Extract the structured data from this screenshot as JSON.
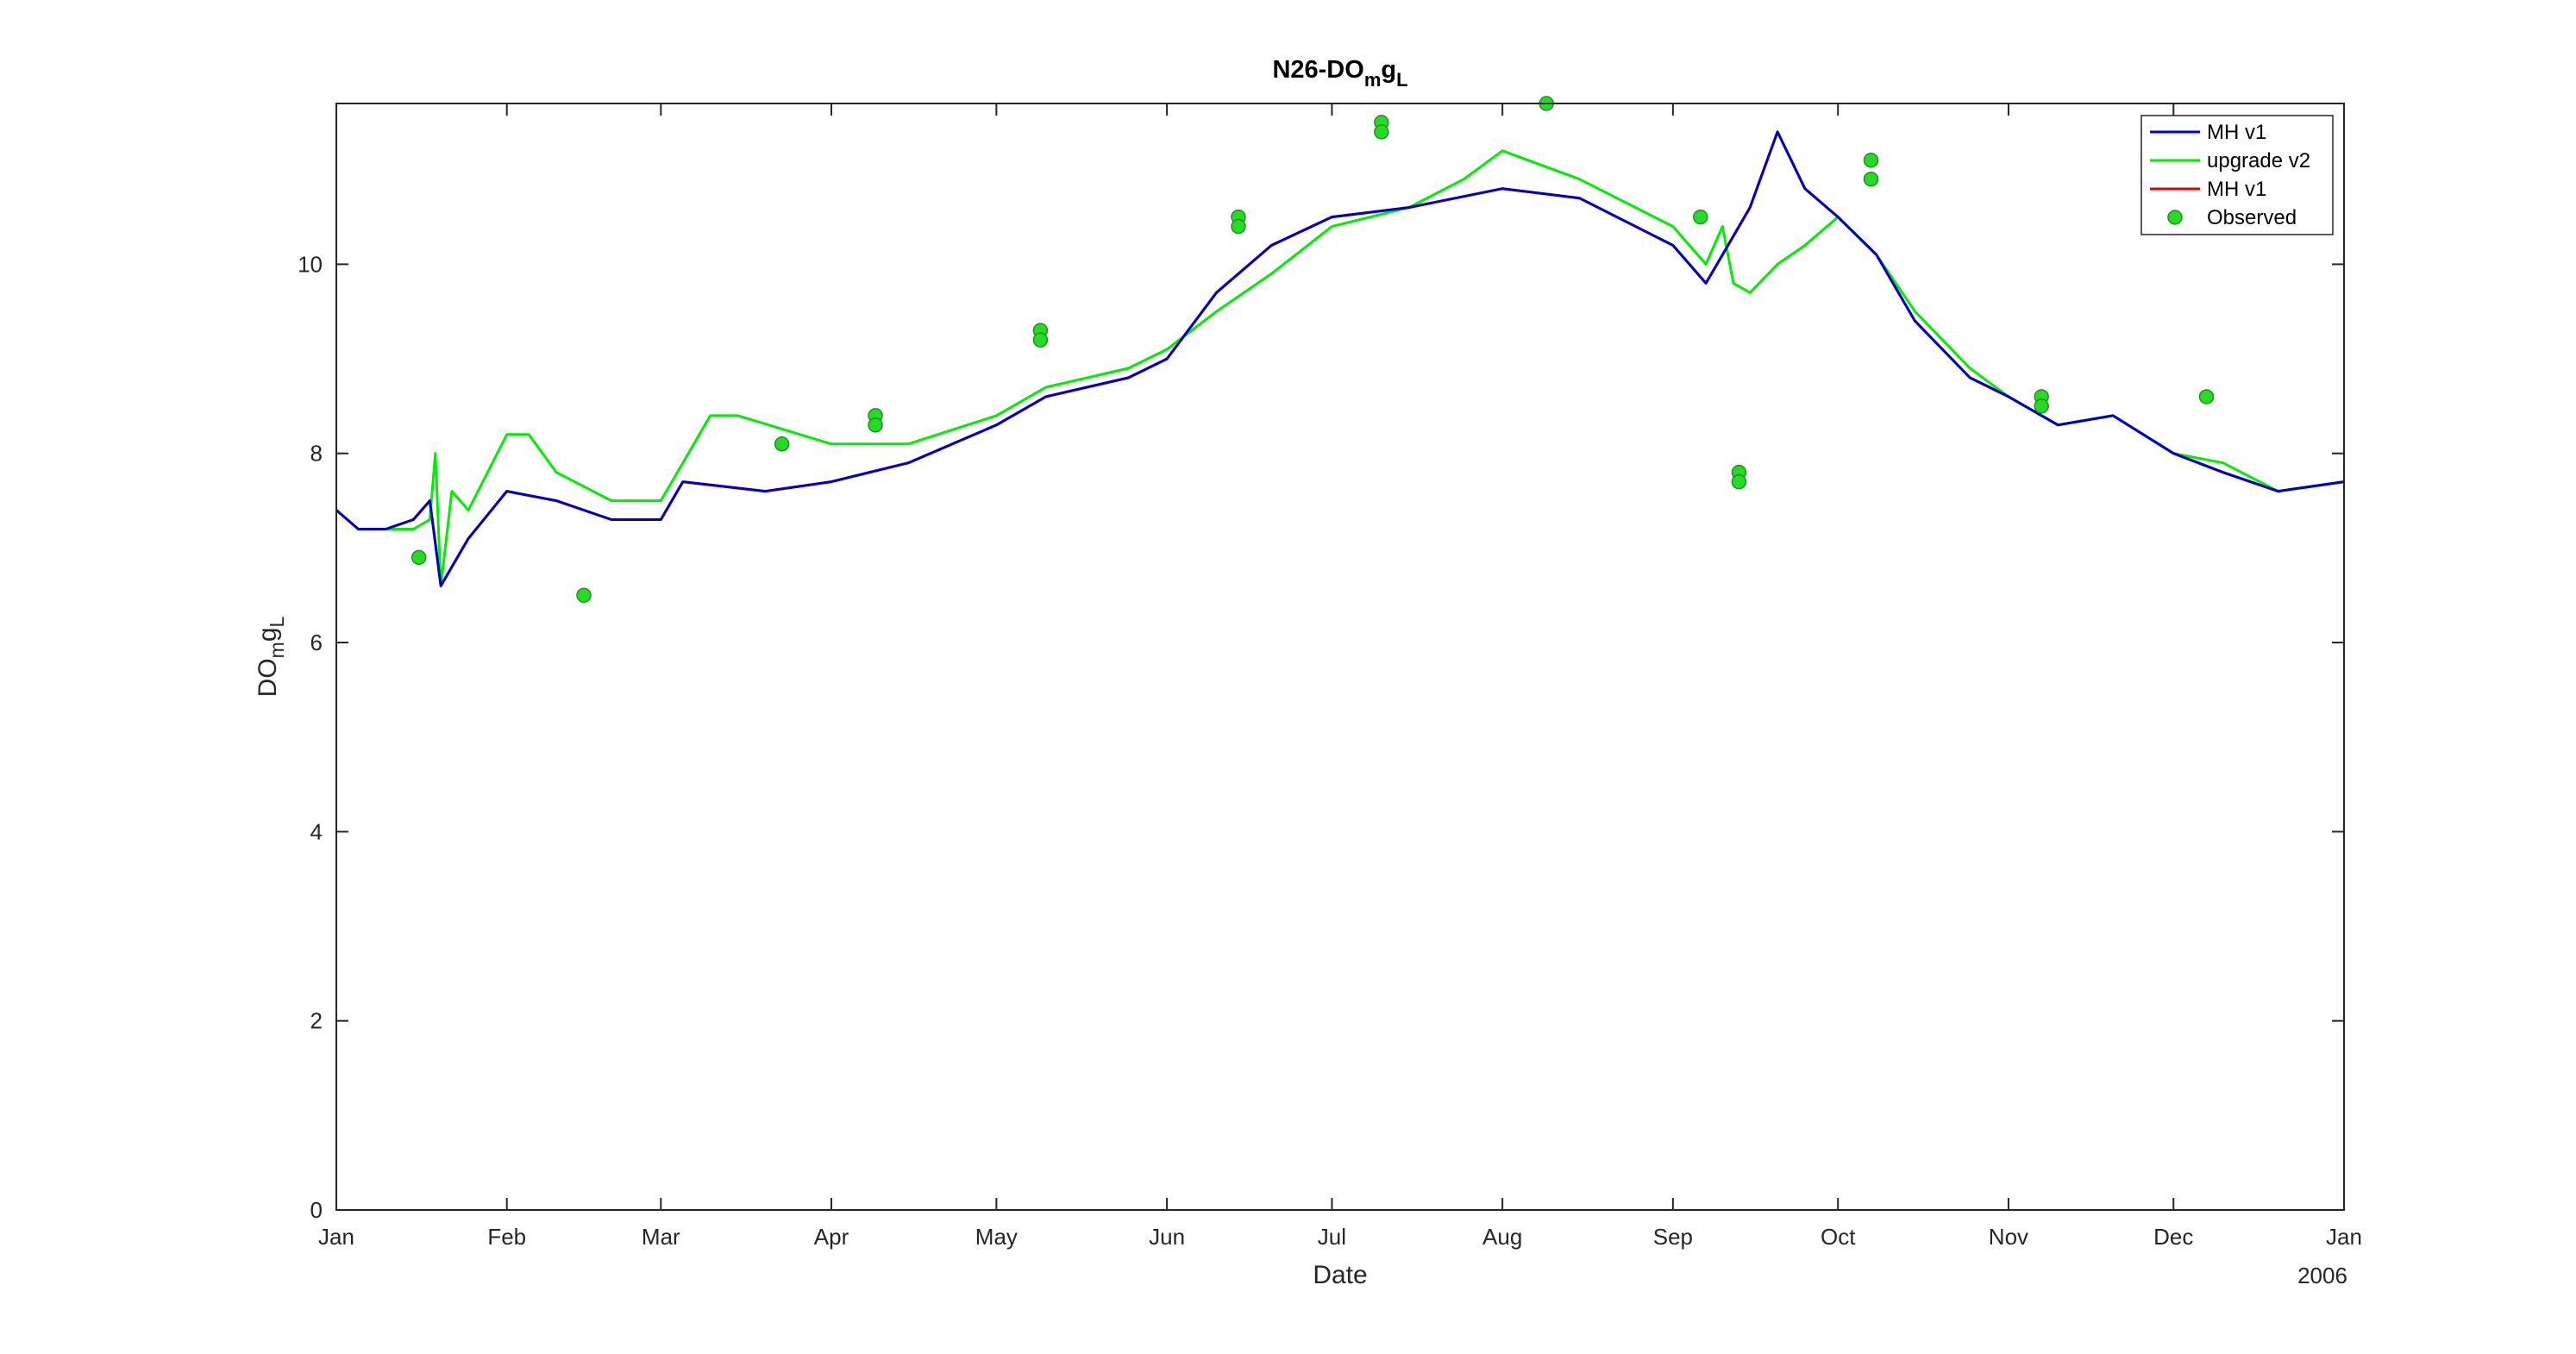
{
  "chart_data": {
    "type": "line",
    "title": "N26-DO",
    "title_sub": "m",
    "title_tail": "g",
    "title_sub2": "L",
    "xlabel": "Date",
    "ylabel": "DO",
    "ylabel_sub": "m",
    "ylabel_tail": "g",
    "ylabel_sub2": "L",
    "year_label": "2006",
    "ylim": [
      0,
      11.7
    ],
    "yticks": [
      0,
      2,
      4,
      6,
      8,
      10
    ],
    "xlim": [
      "2006-01-01",
      "2007-01-01"
    ],
    "xticks": [
      {
        "label": "Jan",
        "date": "2006-01-01"
      },
      {
        "label": "Feb",
        "date": "2006-02-01"
      },
      {
        "label": "Mar",
        "date": "2006-03-01"
      },
      {
        "label": "Apr",
        "date": "2006-04-01"
      },
      {
        "label": "May",
        "date": "2006-05-01"
      },
      {
        "label": "Jun",
        "date": "2006-06-01"
      },
      {
        "label": "Jul",
        "date": "2006-07-01"
      },
      {
        "label": "Aug",
        "date": "2006-08-01"
      },
      {
        "label": "Sep",
        "date": "2006-09-01"
      },
      {
        "label": "Oct",
        "date": "2006-10-01"
      },
      {
        "label": "Nov",
        "date": "2006-11-01"
      },
      {
        "label": "Dec",
        "date": "2006-12-01"
      },
      {
        "label": "Jan",
        "date": "2007-01-01"
      }
    ],
    "legend_position": "top-right",
    "grid": false,
    "series": [
      {
        "name": "MH v1",
        "color": "#0000cc",
        "style": "line",
        "points": [
          [
            "2006-01-01",
            7.4
          ],
          [
            "2006-01-05",
            7.2
          ],
          [
            "2006-01-10",
            7.2
          ],
          [
            "2006-01-15",
            7.3
          ],
          [
            "2006-01-18",
            7.5
          ],
          [
            "2006-01-20",
            6.6
          ],
          [
            "2006-01-25",
            7.1
          ],
          [
            "2006-02-01",
            7.6
          ],
          [
            "2006-02-10",
            7.5
          ],
          [
            "2006-02-20",
            7.3
          ],
          [
            "2006-03-01",
            7.3
          ],
          [
            "2006-03-05",
            7.7
          ],
          [
            "2006-03-20",
            7.6
          ],
          [
            "2006-04-01",
            7.7
          ],
          [
            "2006-04-15",
            7.9
          ],
          [
            "2006-05-01",
            8.3
          ],
          [
            "2006-05-10",
            8.6
          ],
          [
            "2006-05-25",
            8.8
          ],
          [
            "2006-06-01",
            9.0
          ],
          [
            "2006-06-10",
            9.7
          ],
          [
            "2006-06-20",
            10.2
          ],
          [
            "2006-07-01",
            10.5
          ],
          [
            "2006-07-15",
            10.6
          ],
          [
            "2006-08-01",
            10.8
          ],
          [
            "2006-08-15",
            10.7
          ],
          [
            "2006-09-01",
            10.2
          ],
          [
            "2006-09-07",
            9.8
          ],
          [
            "2006-09-10",
            10.1
          ],
          [
            "2006-09-15",
            10.6
          ],
          [
            "2006-09-20",
            11.4
          ],
          [
            "2006-09-25",
            10.8
          ],
          [
            "2006-10-01",
            10.5
          ],
          [
            "2006-10-08",
            10.1
          ],
          [
            "2006-10-15",
            9.4
          ],
          [
            "2006-10-25",
            8.8
          ],
          [
            "2006-11-01",
            8.6
          ],
          [
            "2006-11-10",
            8.3
          ],
          [
            "2006-11-20",
            8.4
          ],
          [
            "2006-12-01",
            8.0
          ],
          [
            "2006-12-10",
            7.8
          ],
          [
            "2006-12-20",
            7.6
          ],
          [
            "2007-01-01",
            7.7
          ]
        ]
      },
      {
        "name": "upgrade v2",
        "color": "#00ee00",
        "style": "line",
        "points": [
          [
            "2006-01-01",
            7.4
          ],
          [
            "2006-01-05",
            7.2
          ],
          [
            "2006-01-15",
            7.2
          ],
          [
            "2006-01-18",
            7.3
          ],
          [
            "2006-01-19",
            8.0
          ],
          [
            "2006-01-20",
            6.6
          ],
          [
            "2006-01-22",
            7.6
          ],
          [
            "2006-01-25",
            7.4
          ],
          [
            "2006-02-01",
            8.2
          ],
          [
            "2006-02-05",
            8.2
          ],
          [
            "2006-02-10",
            7.8
          ],
          [
            "2006-02-20",
            7.5
          ],
          [
            "2006-03-01",
            7.5
          ],
          [
            "2006-03-05",
            7.9
          ],
          [
            "2006-03-10",
            8.4
          ],
          [
            "2006-03-15",
            8.4
          ],
          [
            "2006-04-01",
            8.1
          ],
          [
            "2006-04-15",
            8.1
          ],
          [
            "2006-05-01",
            8.4
          ],
          [
            "2006-05-10",
            8.7
          ],
          [
            "2006-05-25",
            8.9
          ],
          [
            "2006-06-01",
            9.1
          ],
          [
            "2006-06-10",
            9.5
          ],
          [
            "2006-06-20",
            9.9
          ],
          [
            "2006-07-01",
            10.4
          ],
          [
            "2006-07-15",
            10.6
          ],
          [
            "2006-07-25",
            10.9
          ],
          [
            "2006-08-01",
            11.2
          ],
          [
            "2006-08-15",
            10.9
          ],
          [
            "2006-09-01",
            10.4
          ],
          [
            "2006-09-07",
            10.0
          ],
          [
            "2006-09-10",
            10.4
          ],
          [
            "2006-09-12",
            9.8
          ],
          [
            "2006-09-15",
            9.7
          ],
          [
            "2006-09-20",
            10.0
          ],
          [
            "2006-09-25",
            10.2
          ],
          [
            "2006-10-01",
            10.5
          ],
          [
            "2006-10-08",
            10.1
          ],
          [
            "2006-10-15",
            9.5
          ],
          [
            "2006-10-25",
            8.9
          ],
          [
            "2006-11-01",
            8.6
          ],
          [
            "2006-11-10",
            8.3
          ],
          [
            "2006-11-20",
            8.4
          ],
          [
            "2006-12-01",
            8.0
          ],
          [
            "2006-12-10",
            7.9
          ],
          [
            "2006-12-20",
            7.6
          ],
          [
            "2007-01-01",
            7.7
          ]
        ]
      },
      {
        "name": "MH v1",
        "color": "#e00000",
        "style": "line",
        "points": [
          [
            "2006-01-01",
            7.4
          ],
          [
            "2006-01-05",
            7.2
          ],
          [
            "2006-01-10",
            7.2
          ],
          [
            "2006-01-15",
            7.3
          ],
          [
            "2006-01-18",
            7.5
          ],
          [
            "2006-01-20",
            6.6
          ],
          [
            "2006-01-25",
            7.1
          ],
          [
            "2006-02-01",
            7.6
          ],
          [
            "2006-02-10",
            7.5
          ],
          [
            "2006-02-20",
            7.3
          ],
          [
            "2006-03-01",
            7.3
          ],
          [
            "2006-03-05",
            7.7
          ],
          [
            "2006-03-20",
            7.6
          ],
          [
            "2006-04-01",
            7.7
          ],
          [
            "2006-04-15",
            7.9
          ],
          [
            "2006-05-01",
            8.3
          ],
          [
            "2006-05-10",
            8.6
          ],
          [
            "2006-05-25",
            8.8
          ],
          [
            "2006-06-01",
            9.0
          ],
          [
            "2006-06-10",
            9.7
          ],
          [
            "2006-06-20",
            10.2
          ],
          [
            "2006-07-01",
            10.5
          ],
          [
            "2006-07-15",
            10.6
          ],
          [
            "2006-08-01",
            10.8
          ],
          [
            "2006-08-15",
            10.7
          ],
          [
            "2006-09-01",
            10.2
          ],
          [
            "2006-09-07",
            9.8
          ],
          [
            "2006-09-10",
            10.1
          ],
          [
            "2006-09-15",
            10.6
          ],
          [
            "2006-09-20",
            11.4
          ],
          [
            "2006-09-25",
            10.8
          ],
          [
            "2006-10-01",
            10.5
          ],
          [
            "2006-10-08",
            10.1
          ],
          [
            "2006-10-15",
            9.4
          ],
          [
            "2006-10-25",
            8.8
          ],
          [
            "2006-11-01",
            8.6
          ],
          [
            "2006-11-10",
            8.3
          ],
          [
            "2006-11-20",
            8.4
          ],
          [
            "2006-12-01",
            8.0
          ],
          [
            "2006-12-10",
            7.8
          ],
          [
            "2006-12-20",
            7.6
          ],
          [
            "2007-01-01",
            7.7
          ]
        ]
      },
      {
        "name": "Observed",
        "color": "#22dd22",
        "style": "marker",
        "points": [
          [
            "2006-01-16",
            6.9
          ],
          [
            "2006-02-15",
            6.5
          ],
          [
            "2006-03-23",
            8.1
          ],
          [
            "2006-04-09",
            8.4
          ],
          [
            "2006-04-09",
            8.3
          ],
          [
            "2006-05-09",
            9.3
          ],
          [
            "2006-05-09",
            9.2
          ],
          [
            "2006-06-14",
            10.5
          ],
          [
            "2006-06-14",
            10.4
          ],
          [
            "2006-07-10",
            11.5
          ],
          [
            "2006-07-10",
            11.4
          ],
          [
            "2006-08-09",
            11.7
          ],
          [
            "2006-09-06",
            10.5
          ],
          [
            "2006-09-13",
            7.8
          ],
          [
            "2006-09-13",
            7.7
          ],
          [
            "2006-10-07",
            11.1
          ],
          [
            "2006-10-07",
            10.9
          ],
          [
            "2006-11-07",
            8.6
          ],
          [
            "2006-11-07",
            8.5
          ],
          [
            "2006-12-07",
            8.6
          ]
        ]
      }
    ]
  }
}
